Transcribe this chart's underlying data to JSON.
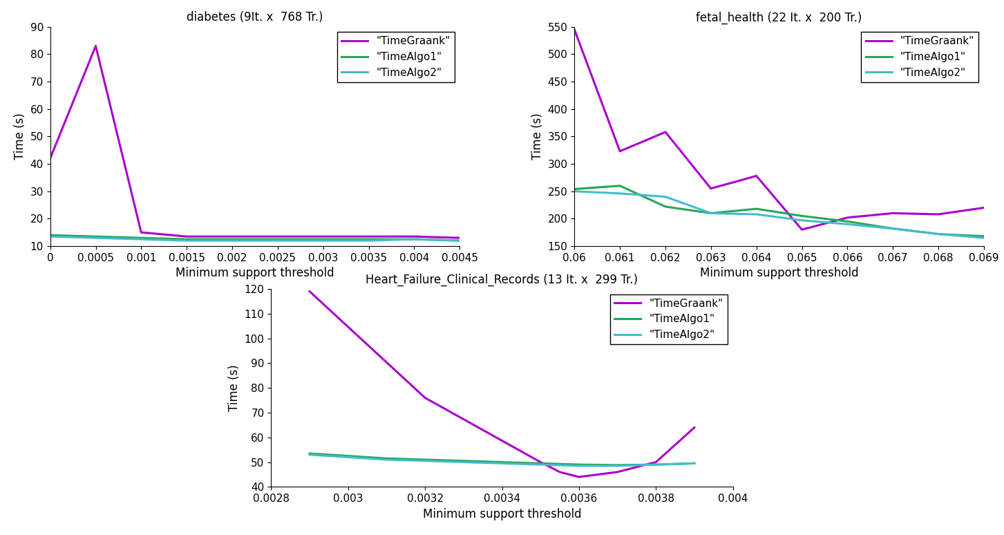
{
  "plots": [
    {
      "title": "diabetes (9It. x  768 Tr.)",
      "xlabel": "Minimum support threshold",
      "ylabel": "Time (s)",
      "xlim": [
        0,
        0.0045
      ],
      "ylim": [
        10,
        90
      ],
      "yticks": [
        10,
        20,
        30,
        40,
        50,
        60,
        70,
        80,
        90
      ],
      "xticks": [
        0,
        0.0005,
        0.001,
        0.0015,
        0.002,
        0.0025,
        0.003,
        0.0035,
        0.004,
        0.0045
      ],
      "xticklabels": [
        "0",
        "0.0005",
        "0.001",
        "0.0015",
        "0.002",
        "0.0025",
        "0.003",
        "0.0035",
        "0.004",
        "0.0045"
      ],
      "series": [
        {
          "name": "\"TimeGraank\"",
          "color": "#aa00cc",
          "linewidth": 2.2,
          "x": [
            0.0,
            0.0005,
            0.001,
            0.0015,
            0.002,
            0.0025,
            0.003,
            0.0035,
            0.004,
            0.0045
          ],
          "y": [
            42,
            83,
            15,
            13.5,
            13.5,
            13.5,
            13.5,
            13.5,
            13.5,
            13.0
          ]
        },
        {
          "name": "\"TimeAlgo1\"",
          "color": "#22aa55",
          "linewidth": 2.2,
          "x": [
            0.0,
            0.0005,
            0.001,
            0.0015,
            0.002,
            0.0025,
            0.003,
            0.0035,
            0.004,
            0.0045
          ],
          "y": [
            14.0,
            13.5,
            13.0,
            12.5,
            12.5,
            12.5,
            12.5,
            12.5,
            12.5,
            12.0
          ]
        },
        {
          "name": "\"TimeAlgo2\"",
          "color": "#44bbcc",
          "linewidth": 2.2,
          "x": [
            0.0,
            0.0005,
            0.001,
            0.0015,
            0.002,
            0.0025,
            0.003,
            0.0035,
            0.004,
            0.0045
          ],
          "y": [
            13.5,
            13.0,
            12.5,
            12.0,
            12.0,
            12.0,
            12.0,
            12.0,
            12.5,
            12.0
          ]
        }
      ]
    },
    {
      "title": "fetal_health (22 It. x  200 Tr.)",
      "xlabel": "Minimum support threshold",
      "ylabel": "Time (s)",
      "xlim": [
        0.06,
        0.069
      ],
      "ylim": [
        150,
        550
      ],
      "yticks": [
        150,
        200,
        250,
        300,
        350,
        400,
        450,
        500,
        550
      ],
      "xticks": [
        0.06,
        0.061,
        0.062,
        0.063,
        0.064,
        0.065,
        0.066,
        0.067,
        0.068,
        0.069
      ],
      "xticklabels": [
        "0.06",
        "0.061",
        "0.062",
        "0.063",
        "0.064",
        "0.065",
        "0.066",
        "0.067",
        "0.068",
        "0.069"
      ],
      "series": [
        {
          "name": "\"TimeGraank\"",
          "color": "#aa00cc",
          "linewidth": 2.2,
          "x": [
            0.06,
            0.061,
            0.062,
            0.063,
            0.064,
            0.065,
            0.066,
            0.067,
            0.068,
            0.069
          ],
          "y": [
            545,
            323,
            358,
            255,
            278,
            180,
            202,
            210,
            208,
            220
          ]
        },
        {
          "name": "\"TimeAlgo1\"",
          "color": "#22aa55",
          "linewidth": 2.2,
          "x": [
            0.06,
            0.061,
            0.062,
            0.063,
            0.064,
            0.065,
            0.066,
            0.067,
            0.068,
            0.069
          ],
          "y": [
            254,
            260,
            222,
            210,
            218,
            205,
            195,
            182,
            172,
            168
          ]
        },
        {
          "name": "\"TimeAlgo2\"",
          "color": "#44bbcc",
          "linewidth": 2.2,
          "x": [
            0.06,
            0.061,
            0.062,
            0.063,
            0.064,
            0.065,
            0.066,
            0.067,
            0.068,
            0.069
          ],
          "y": [
            250,
            246,
            240,
            210,
            208,
            197,
            190,
            182,
            172,
            165
          ]
        }
      ]
    },
    {
      "title": "Heart_Failure_Clinical_Records (13 It. x  299 Tr.)",
      "xlabel": "Minimum support threshold",
      "ylabel": "Time (s)",
      "xlim": [
        0.0028,
        0.004
      ],
      "ylim": [
        40,
        120
      ],
      "yticks": [
        40,
        50,
        60,
        70,
        80,
        90,
        100,
        110,
        120
      ],
      "xticks": [
        0.0028,
        0.003,
        0.0032,
        0.0034,
        0.0036,
        0.0038,
        0.004
      ],
      "xticklabels": [
        "0.0028",
        "0.003",
        "0.0032",
        "0.0034",
        "0.0036",
        "0.0038",
        "0.004"
      ],
      "series": [
        {
          "name": "\"TimeGraank\"",
          "color": "#aa00cc",
          "linewidth": 2.2,
          "x": [
            0.0029,
            0.0032,
            0.0035,
            0.00355,
            0.0036,
            0.00365,
            0.0037,
            0.00375,
            0.0038,
            0.0039
          ],
          "y": [
            119,
            76,
            50,
            46,
            44,
            45,
            46,
            48,
            50,
            64
          ]
        },
        {
          "name": "\"TimeAlgo1\"",
          "color": "#22aa55",
          "linewidth": 2.2,
          "x": [
            0.0029,
            0.003,
            0.0031,
            0.0032,
            0.0033,
            0.0034,
            0.0035,
            0.0036,
            0.0037,
            0.0038,
            0.0039
          ],
          "y": [
            53.5,
            52.5,
            51.5,
            51.0,
            50.5,
            50.0,
            49.5,
            49.0,
            48.8,
            49.0,
            49.5
          ]
        },
        {
          "name": "\"TimeAlgo2\"",
          "color": "#44bbcc",
          "linewidth": 2.2,
          "x": [
            0.0029,
            0.003,
            0.0031,
            0.0032,
            0.0033,
            0.0034,
            0.0035,
            0.0036,
            0.0037,
            0.0038,
            0.0039
          ],
          "y": [
            53.0,
            52.0,
            51.0,
            50.5,
            50.0,
            49.5,
            49.0,
            48.5,
            48.5,
            49.0,
            49.5
          ]
        }
      ]
    }
  ],
  "background_color": "#ffffff",
  "legend_fontsize": 11,
  "axis_label_fontsize": 12,
  "title_fontsize": 12,
  "tick_fontsize": 11
}
